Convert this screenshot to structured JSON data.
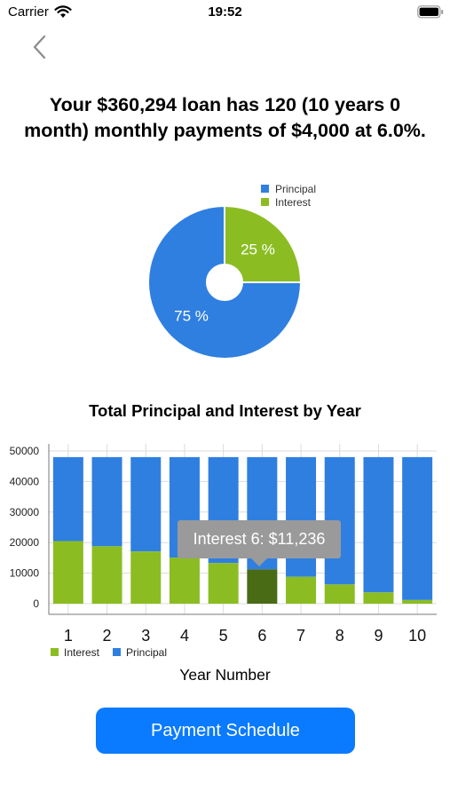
{
  "status_bar": {
    "carrier": "Carrier",
    "time": "19:52"
  },
  "summary": {
    "text": "Your $360,294 loan has 120 (10 years 0 month) monthly payments of $4,000 at 6.0%."
  },
  "colors": {
    "principal": "#2f7fe0",
    "interest": "#8bbd22",
    "interest_highlight": "#4a6b16",
    "button": "#0a7aff"
  },
  "chart_data": [
    {
      "type": "pie",
      "labels": [
        "Principal",
        "Interest"
      ],
      "values": [
        75,
        25
      ],
      "value_labels": [
        "75 %",
        "25 %"
      ],
      "legend_placement": "top-right"
    },
    {
      "type": "bar",
      "stacked": true,
      "title": "Total Principal and Interest by Year",
      "xlabel": "Year Number",
      "categories": [
        "1",
        "2",
        "3",
        "4",
        "5",
        "6",
        "7",
        "8",
        "9",
        "10"
      ],
      "series": [
        {
          "name": "Interest",
          "values": [
            20500,
            18800,
            17100,
            15100,
            13300,
            11236,
            8800,
            6300,
            3700,
            1200
          ]
        },
        {
          "name": "Principal",
          "values": [
            27500,
            29200,
            30900,
            32900,
            34700,
            36764,
            39200,
            41700,
            44300,
            46800
          ]
        }
      ],
      "y_ticks": [
        "0",
        "10000",
        "20000",
        "30000",
        "40000",
        "50000"
      ],
      "ylim": [
        0,
        50000
      ],
      "grid": true,
      "legend_placement": "bottom-left",
      "highlighted": {
        "series": "Interest",
        "category": "6"
      },
      "tooltip": "Interest 6: $11,236"
    }
  ],
  "button": {
    "label": "Payment Schedule"
  }
}
